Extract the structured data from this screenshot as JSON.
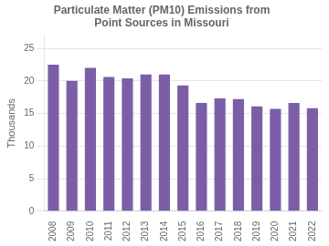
{
  "chart_data": {
    "type": "bar",
    "title": "Particulate Matter (PM10) Emissions from\nPoint Sources in Missouri",
    "y_label": "Thousands",
    "categories": [
      "2008",
      "2009",
      "2010",
      "2011",
      "2012",
      "2013",
      "2014",
      "2015",
      "2016",
      "2017",
      "2018",
      "2019",
      "2020",
      "2021",
      "2022"
    ],
    "values": [
      22.5,
      20.0,
      22.0,
      20.6,
      20.4,
      21.0,
      21.0,
      19.3,
      16.6,
      17.3,
      17.2,
      16.1,
      15.7,
      16.6,
      15.8
    ],
    "color": "#7B5EA7",
    "ylim": [
      0,
      27
    ],
    "yticks": [
      0,
      5,
      10,
      15,
      20,
      25
    ],
    "grid": true
  }
}
